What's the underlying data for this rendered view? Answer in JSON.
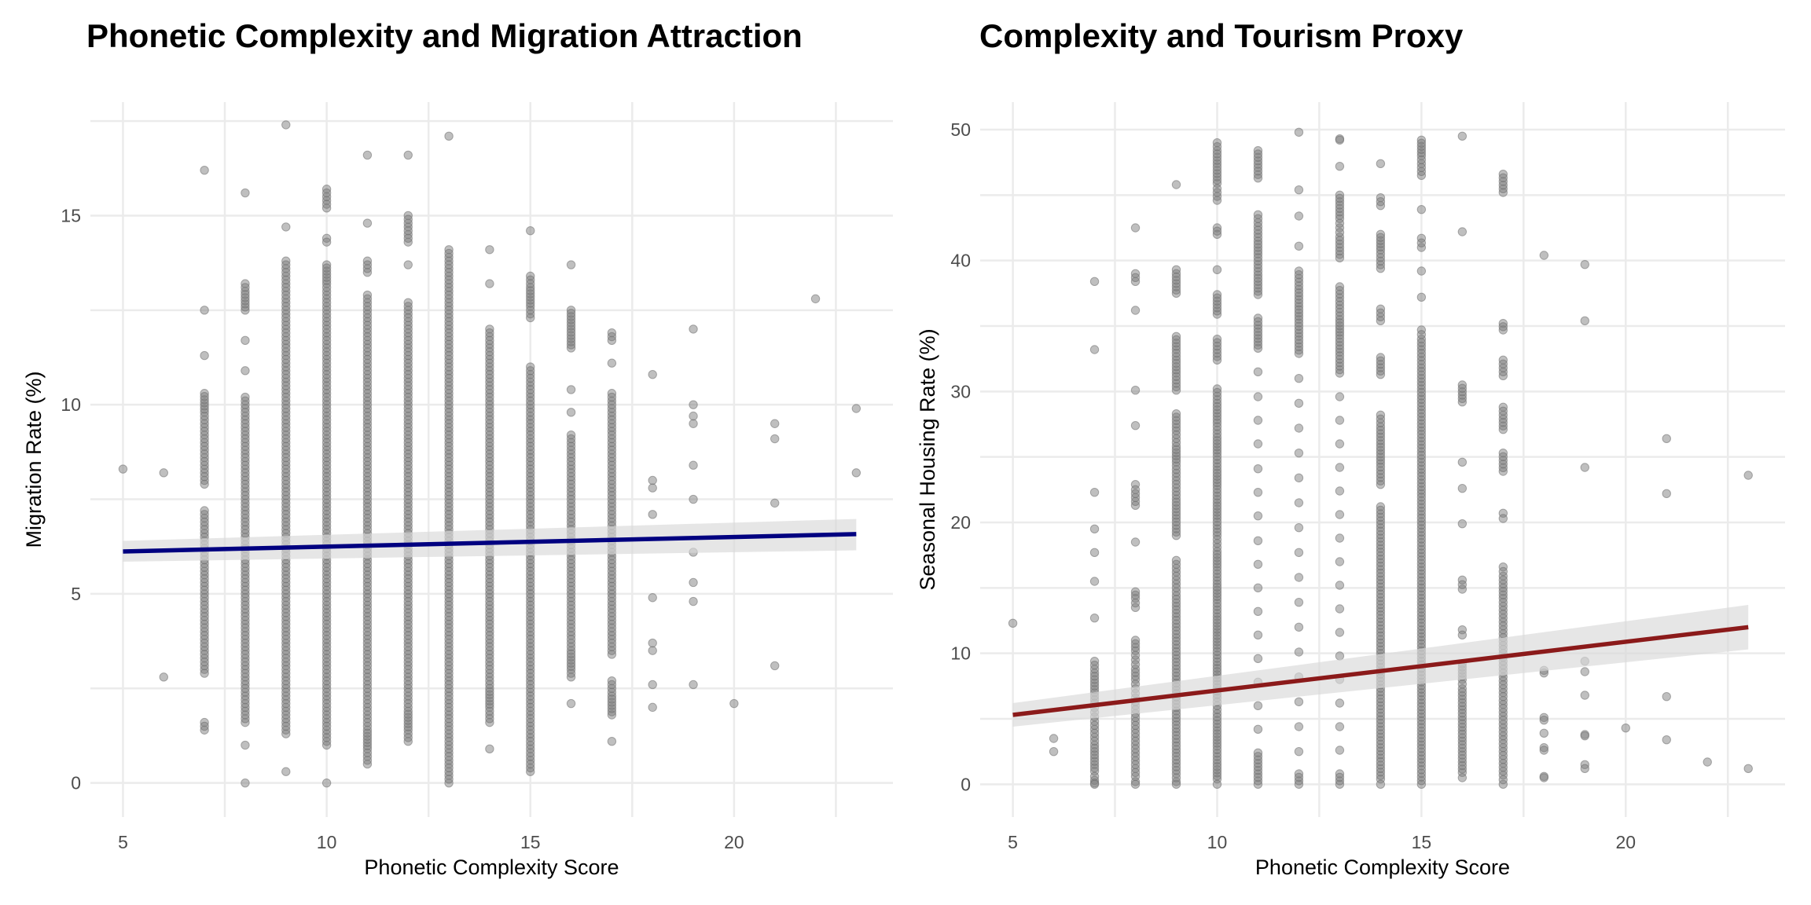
{
  "chart_data": [
    {
      "type": "scatter",
      "title": "Phonetic Complexity and Migration Attraction",
      "xlabel": "Phonetic Complexity Score",
      "ylabel": "Migration Rate (%)",
      "xlim": [
        4.2,
        23.9
      ],
      "ylim": [
        -0.9,
        18.0
      ],
      "xticks": [
        5,
        10,
        15,
        20
      ],
      "yticks": [
        0,
        5,
        10,
        15
      ],
      "grid": true,
      "legend": "none",
      "point_color": "#808080",
      "point_alpha": 0.5,
      "fit": {
        "method": "linear",
        "color": "#000080",
        "x": [
          5,
          23
        ],
        "y": [
          6.12,
          6.58
        ],
        "ci_lower": [
          5.85,
          6.15
        ],
        "ci_upper": [
          6.4,
          6.98
        ],
        "ci_color": "#d9d9d9"
      },
      "points": [
        {
          "x": 5,
          "y": [
            8.3
          ]
        },
        {
          "x": 6,
          "y": [
            8.2,
            2.8
          ]
        },
        {
          "x": 7,
          "y": [
            16.2,
            12.5,
            11.3,
            10.3,
            9.8,
            9.4,
            9.2,
            9.0,
            8.8,
            8.6,
            8.2,
            7.9,
            7.2,
            7.0,
            6.8,
            6.6,
            6.4,
            6.2,
            6.0,
            5.8,
            5.5,
            5.2,
            5.0,
            4.8,
            4.5,
            4.2,
            4.0,
            3.8,
            3.5,
            3.3,
            3.0,
            2.9,
            1.6,
            1.4
          ]
        },
        {
          "x": 8,
          "y": [
            15.6,
            13.2,
            13.0,
            12.5,
            11.7,
            10.9,
            10.2,
            9.9,
            9.6,
            9.4,
            9.2,
            9.0,
            8.7,
            8.5,
            8.3,
            8.0,
            7.7,
            7.5,
            7.2,
            7.0,
            6.8,
            6.5,
            6.3,
            6.0,
            5.8,
            5.5,
            5.2,
            5.0,
            4.8,
            4.5,
            4.2,
            4.0,
            3.8,
            3.5,
            3.3,
            3.0,
            2.6,
            2.3,
            1.9,
            1.6,
            1.0,
            0.0
          ]
        },
        {
          "x": 9,
          "y": [
            17.4,
            14.7,
            13.8,
            13.6,
            13.4,
            13.2,
            13.0,
            12.7,
            12.4,
            12.0,
            11.6,
            11.3,
            10.9,
            10.6,
            10.3,
            10.0,
            9.8,
            9.5,
            9.2,
            9.0,
            8.7,
            8.4,
            8.1,
            7.8,
            7.5,
            7.2,
            7.0,
            6.7,
            6.4,
            6.1,
            5.8,
            5.5,
            5.2,
            4.9,
            4.6,
            4.3,
            4.0,
            3.7,
            3.4,
            3.1,
            2.8,
            2.5,
            2.2,
            1.9,
            1.6,
            1.3,
            0.3
          ]
        },
        {
          "x": 10,
          "y": [
            15.7,
            15.4,
            15.2,
            14.4,
            14.3,
            13.7,
            13.2,
            12.8,
            12.5,
            12.1,
            11.8,
            11.5,
            11.2,
            10.9,
            10.6,
            10.3,
            10.0,
            9.7,
            9.4,
            9.1,
            8.8,
            8.5,
            8.2,
            7.9,
            7.6,
            7.3,
            7.0,
            6.7,
            6.4,
            6.1,
            5.8,
            5.5,
            5.2,
            4.9,
            4.6,
            4.3,
            4.0,
            3.7,
            3.4,
            3.1,
            2.8,
            2.5,
            2.2,
            1.9,
            1.6,
            1.3,
            1.0,
            0.0
          ]
        },
        {
          "x": 11,
          "y": [
            16.6,
            14.8,
            13.8,
            13.5,
            12.9,
            12.7,
            12.5,
            12.2,
            11.9,
            11.6,
            11.3,
            11.0,
            10.7,
            10.4,
            10.1,
            9.8,
            9.5,
            9.2,
            8.9,
            8.6,
            8.3,
            8.0,
            7.7,
            7.4,
            7.1,
            6.8,
            6.5,
            6.2,
            5.9,
            5.6,
            5.3,
            5.0,
            4.7,
            4.4,
            4.1,
            3.8,
            3.5,
            3.2,
            2.9,
            2.6,
            2.3,
            2.0,
            1.7,
            1.4,
            0.9,
            0.7,
            0.5
          ]
        },
        {
          "x": 12,
          "y": [
            16.6,
            15.0,
            14.7,
            14.5,
            14.3,
            13.7,
            12.7,
            12.4,
            12.1,
            11.8,
            11.5,
            11.2,
            10.9,
            10.6,
            10.3,
            10.0,
            9.7,
            9.4,
            9.1,
            8.8,
            8.5,
            8.2,
            7.9,
            7.6,
            7.3,
            7.0,
            6.7,
            6.4,
            6.1,
            5.8,
            5.5,
            5.2,
            4.9,
            4.6,
            4.3,
            4.0,
            3.7,
            3.4,
            3.1,
            2.8,
            2.5,
            2.2,
            1.9,
            1.4,
            1.3,
            1.1
          ]
        },
        {
          "x": 13,
          "y": [
            17.1,
            14.1,
            13.9,
            13.8,
            13.6,
            13.4,
            13.0,
            12.6,
            12.3,
            12.0,
            11.7,
            11.4,
            11.1,
            10.8,
            10.5,
            10.2,
            9.9,
            9.6,
            9.3,
            9.0,
            8.7,
            8.4,
            8.1,
            7.8,
            7.5,
            7.2,
            6.9,
            6.6,
            6.3,
            6.0,
            5.7,
            5.4,
            5.1,
            4.8,
            4.5,
            4.2,
            3.9,
            3.6,
            3.3,
            3.0,
            2.7,
            2.4,
            2.1,
            1.8,
            1.5,
            1.2,
            0.8,
            0.5,
            0.2,
            0.0
          ]
        },
        {
          "x": 14,
          "y": [
            14.1,
            13.2,
            12.0,
            11.8,
            11.5,
            11.2,
            10.9,
            10.5,
            10.3,
            10.0,
            9.7,
            9.4,
            9.1,
            8.8,
            8.5,
            8.2,
            7.9,
            7.6,
            7.3,
            7.0,
            6.7,
            6.4,
            6.1,
            5.8,
            5.5,
            5.2,
            4.9,
            4.6,
            4.3,
            4.0,
            3.7,
            3.4,
            3.1,
            2.8,
            2.5,
            2.0,
            1.8,
            1.6,
            0.9
          ]
        },
        {
          "x": 15,
          "y": [
            14.6,
            13.4,
            13.3,
            13.1,
            12.6,
            12.3,
            11.0,
            10.8,
            10.5,
            10.2,
            9.9,
            9.6,
            9.3,
            9.0,
            8.7,
            8.4,
            8.1,
            7.8,
            7.5,
            7.2,
            6.9,
            6.6,
            6.3,
            6.0,
            5.7,
            5.4,
            5.1,
            4.8,
            4.5,
            4.2,
            3.9,
            3.6,
            3.3,
            3.0,
            2.7,
            2.4,
            2.1,
            1.8,
            1.5,
            1.2,
            0.9,
            0.6,
            0.3
          ]
        },
        {
          "x": 16,
          "y": [
            13.7,
            12.5,
            12.0,
            11.5,
            10.4,
            9.8,
            9.2,
            9.0,
            8.6,
            8.3,
            8.0,
            7.6,
            7.3,
            7.0,
            6.8,
            6.5,
            6.2,
            6.0,
            5.6,
            5.2,
            4.8,
            4.5,
            4.2,
            3.9,
            3.5,
            3.0,
            2.8,
            2.1
          ]
        },
        {
          "x": 17,
          "y": [
            11.9,
            11.7,
            11.1,
            10.3,
            10.1,
            9.7,
            9.3,
            8.9,
            8.5,
            8.1,
            7.7,
            7.3,
            6.9,
            6.6,
            6.3,
            6.0,
            5.7,
            5.3,
            5.0,
            4.6,
            4.2,
            3.8,
            3.4,
            2.7,
            2.3,
            1.8,
            1.1
          ]
        },
        {
          "x": 18,
          "y": [
            10.8,
            8.0,
            7.8,
            7.1,
            4.9,
            3.7,
            3.5,
            2.6,
            2.0
          ]
        },
        {
          "x": 19,
          "y": [
            12.0,
            10.0,
            9.7,
            9.5,
            8.4,
            7.5,
            6.1,
            5.3,
            4.8,
            2.6
          ]
        },
        {
          "x": 20,
          "y": [
            2.1
          ]
        },
        {
          "x": 21,
          "y": [
            9.5,
            9.1,
            7.4,
            3.1
          ]
        },
        {
          "x": 22,
          "y": [
            12.8
          ]
        },
        {
          "x": 23,
          "y": [
            9.9,
            8.2
          ]
        }
      ]
    },
    {
      "type": "scatter",
      "title": "Complexity and Tourism Proxy",
      "xlabel": "Phonetic Complexity Score",
      "ylabel": "Seasonal Housing Rate (%)",
      "xlim": [
        4.2,
        23.9
      ],
      "ylim": [
        -2.5,
        52.1
      ],
      "xticks": [
        5,
        10,
        15,
        20
      ],
      "yticks": [
        0,
        10,
        20,
        30,
        40,
        50
      ],
      "grid": true,
      "legend": "none",
      "point_color": "#808080",
      "point_alpha": 0.5,
      "fit": {
        "method": "linear",
        "color": "#8b1a1a",
        "x": [
          5,
          23
        ],
        "y": [
          5.3,
          12.0
        ],
        "ci_lower": [
          4.4,
          10.3
        ],
        "ci_upper": [
          6.2,
          13.7
        ],
        "ci_color": "#d9d9d9"
      },
      "points": [
        {
          "x": 5,
          "y": [
            12.3
          ]
        },
        {
          "x": 6,
          "y": [
            3.5,
            2.5
          ]
        },
        {
          "x": 7,
          "y": [
            38.4,
            33.2,
            22.3,
            19.5,
            17.7,
            15.5,
            12.7,
            9.4,
            8.5,
            7.0,
            6.2,
            5.5,
            4.8,
            4.2,
            3.6,
            3.0,
            2.5,
            2.0,
            1.5,
            1.0,
            0.6,
            0.3,
            0.1,
            0.0
          ]
        },
        {
          "x": 8,
          "y": [
            42.5,
            39.0,
            38.4,
            36.2,
            30.1,
            27.4,
            22.9,
            22.5,
            21.3,
            18.5,
            14.7,
            14.2,
            13.5,
            11.0,
            10.2,
            9.5,
            8.8,
            8.0,
            7.3,
            6.6,
            6.0,
            5.4,
            4.8,
            4.2,
            3.6,
            3.0,
            2.4,
            1.8,
            1.2,
            0.6,
            0.2,
            0.0
          ]
        },
        {
          "x": 9,
          "y": [
            45.8,
            39.3,
            39.0,
            37.5,
            34.2,
            33.2,
            32.4,
            31.4,
            30.1,
            28.3,
            27.0,
            25.8,
            24.6,
            23.2,
            21.8,
            20.3,
            19.0,
            17.1,
            16.2,
            15.3,
            14.4,
            13.6,
            12.8,
            12.0,
            11.2,
            10.4,
            9.6,
            8.8,
            8.0,
            7.2,
            6.4,
            5.6,
            4.8,
            4.0,
            3.2,
            2.4,
            1.6,
            0.8,
            0.2,
            0.0
          ]
        },
        {
          "x": 10,
          "y": [
            49.0,
            48.4,
            47.4,
            45.9,
            45.5,
            44.6,
            42.5,
            42.0,
            39.3,
            37.4,
            35.9,
            34.0,
            32.4,
            30.2,
            29.1,
            27.6,
            26.5,
            25.3,
            24.0,
            22.8,
            21.5,
            20.3,
            19.0,
            17.8,
            16.6,
            15.3,
            14.1,
            12.8,
            11.6,
            10.4,
            9.1,
            7.9,
            6.6,
            5.4,
            4.1,
            2.9,
            1.6,
            0.4,
            0.0
          ]
        },
        {
          "x": 11,
          "y": [
            48.4,
            47.1,
            46.3,
            43.5,
            42.6,
            41.5,
            40.5,
            38.9,
            37.4,
            35.6,
            34.8,
            33.3,
            31.5,
            29.6,
            27.8,
            26.0,
            24.1,
            22.3,
            20.5,
            18.6,
            16.8,
            15.0,
            13.2,
            11.4,
            9.6,
            7.8,
            6.0,
            4.2,
            2.4,
            0.8,
            0.0
          ]
        },
        {
          "x": 12,
          "y": [
            49.8,
            45.4,
            43.4,
            41.1,
            39.2,
            37.8,
            36.5,
            35.5,
            34.2,
            32.9,
            31.0,
            29.1,
            27.2,
            25.3,
            23.4,
            21.5,
            19.6,
            17.7,
            15.8,
            13.9,
            12.0,
            10.1,
            8.2,
            6.3,
            4.4,
            2.5,
            0.8,
            0.0
          ]
        },
        {
          "x": 13,
          "y": [
            49.3,
            49.2,
            47.2,
            45.0,
            44.5,
            43.2,
            42.5,
            41.8,
            40.2,
            38.0,
            36.6,
            35.5,
            34.3,
            33.0,
            31.4,
            29.6,
            27.8,
            26.0,
            24.2,
            22.4,
            20.6,
            18.8,
            17.0,
            15.2,
            13.4,
            11.6,
            9.8,
            8.0,
            6.2,
            4.4,
            2.6,
            0.8,
            0.0
          ]
        },
        {
          "x": 14,
          "y": [
            47.4,
            44.8,
            44.2,
            42.0,
            40.8,
            39.4,
            36.3,
            35.4,
            32.6,
            31.3,
            28.2,
            27.3,
            26.0,
            24.5,
            22.9,
            21.2,
            19.6,
            18.0,
            16.4,
            14.8,
            13.2,
            11.6,
            10.0,
            8.4,
            6.8,
            5.2,
            3.6,
            2.0,
            0.4,
            0.0
          ]
        },
        {
          "x": 15,
          "y": [
            49.2,
            48.0,
            47.4,
            46.5,
            43.9,
            41.7,
            41.0,
            39.2,
            37.2,
            34.7,
            34.0,
            33.2,
            31.8,
            30.2,
            28.6,
            27.0,
            25.4,
            23.8,
            22.2,
            20.6,
            19.0,
            17.4,
            15.8,
            14.2,
            12.6,
            11.0,
            9.4,
            7.8,
            6.2,
            4.6,
            3.0,
            1.4,
            0.0
          ]
        },
        {
          "x": 16,
          "y": [
            49.5,
            42.2,
            30.5,
            29.2,
            24.6,
            22.6,
            19.9,
            15.6,
            14.9,
            11.8,
            11.4,
            9.2,
            8.0,
            7.3,
            6.5,
            5.7,
            4.9,
            4.1,
            3.3,
            2.5,
            1.7,
            0.9,
            0.5
          ]
        },
        {
          "x": 17,
          "y": [
            46.6,
            45.2,
            35.2,
            34.7,
            32.4,
            31.2,
            28.8,
            27.9,
            27.1,
            25.3,
            23.9,
            20.7,
            20.3,
            16.6,
            15.9,
            15.0,
            14.2,
            13.3,
            12.4,
            11.5,
            10.6,
            9.7,
            8.8,
            7.9,
            7.0,
            6.1,
            5.2,
            4.3,
            3.4,
            2.5,
            1.6,
            0.7,
            0.0
          ]
        },
        {
          "x": 18,
          "y": [
            40.4,
            8.7,
            8.5,
            5.1,
            4.9,
            3.9,
            2.8,
            2.6,
            0.6,
            0.5
          ]
        },
        {
          "x": 19,
          "y": [
            39.7,
            35.4,
            24.2,
            9.4,
            8.6,
            6.8,
            3.8,
            3.7,
            1.5,
            1.2
          ]
        },
        {
          "x": 20,
          "y": [
            4.3
          ]
        },
        {
          "x": 21,
          "y": [
            26.4,
            22.2,
            6.7,
            3.4
          ]
        },
        {
          "x": 22,
          "y": [
            1.7
          ]
        },
        {
          "x": 23,
          "y": [
            23.6,
            1.2
          ]
        }
      ]
    }
  ]
}
